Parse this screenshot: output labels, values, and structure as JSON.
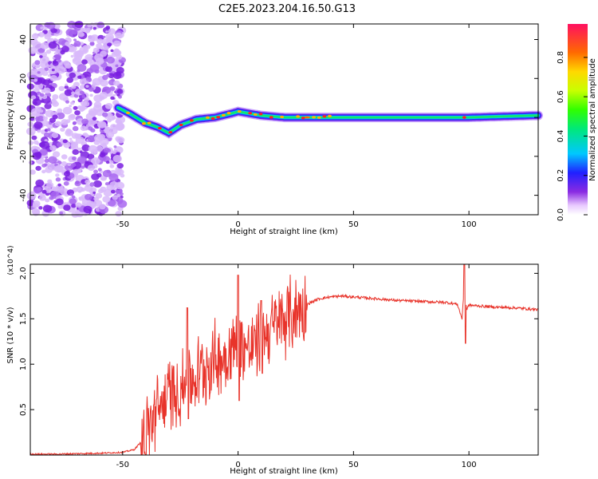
{
  "title": "C2E5.2023.204.16.50.G13",
  "chart_data": [
    {
      "type": "heatmap",
      "xlabel": "Height of straight line (km)",
      "ylabel": "Frequency (Hz)",
      "xlim": [
        -90,
        130
      ],
      "ylim": [
        -50,
        48
      ],
      "xticks": [
        -50,
        0,
        50,
        100
      ],
      "yticks": [
        -40,
        -20,
        0,
        20,
        40
      ],
      "colorbar": {
        "label": "Normalized spectral amplitude",
        "range": [
          0,
          0.97
        ],
        "ticks": [
          0.0,
          0.2,
          0.4,
          0.6,
          0.8
        ]
      },
      "ridge": [
        {
          "x": -52,
          "f": 5
        },
        {
          "x": -47,
          "f": 2
        },
        {
          "x": -40,
          "f": -3
        },
        {
          "x": -35,
          "f": -5
        },
        {
          "x": -30,
          "f": -8
        },
        {
          "x": -25,
          "f": -4
        },
        {
          "x": -18,
          "f": -1
        },
        {
          "x": -10,
          "f": 0
        },
        {
          "x": -3,
          "f": 2
        },
        {
          "x": 0,
          "f": 3
        },
        {
          "x": 10,
          "f": 1
        },
        {
          "x": 20,
          "f": 0
        },
        {
          "x": 40,
          "f": 0
        },
        {
          "x": 70,
          "f": 0
        },
        {
          "x": 100,
          "f": 0
        },
        {
          "x": 130,
          "f": 1
        }
      ],
      "noise_region_x": [
        -90,
        -50
      ]
    },
    {
      "type": "line",
      "xlabel": "Height of straight line (km)",
      "ylabel": "SNR (10 * v/v)",
      "multiplier": "(x10^4)",
      "xlim": [
        -90,
        130
      ],
      "ylim": [
        0,
        2.1
      ],
      "xticks": [
        -50,
        0,
        50,
        100
      ],
      "yticks": [
        0.5,
        1.0,
        1.5,
        2.0
      ],
      "color": "#e8332a",
      "series": [
        {
          "x": [
            -90,
            -80,
            -70,
            -60,
            -50,
            -45,
            -40,
            -36,
            -32,
            -28,
            -24,
            -20,
            -15,
            -10,
            -5,
            0,
            5,
            10,
            15,
            20,
            25,
            30,
            35,
            40,
            45,
            50,
            60,
            70,
            80,
            90,
            95,
            97,
            98,
            99,
            100,
            105,
            110,
            120,
            130
          ],
          "values": [
            0.01,
            0.01,
            0.015,
            0.02,
            0.03,
            0.06,
            0.2,
            0.45,
            0.6,
            0.7,
            0.75,
            0.8,
            0.95,
            1.05,
            1.1,
            1.25,
            1.15,
            1.3,
            1.4,
            1.5,
            1.58,
            1.66,
            1.72,
            1.74,
            1.75,
            1.74,
            1.72,
            1.7,
            1.69,
            1.68,
            1.66,
            1.5,
            1.85,
            1.6,
            1.65,
            1.64,
            1.63,
            1.62,
            1.6
          ]
        }
      ],
      "spikes": [
        {
          "x": -22,
          "peak": 1.62,
          "trough": 0.4
        },
        {
          "x": 0,
          "peak": 1.98,
          "trough": 0.6
        },
        {
          "x": 10,
          "peak": 1.7,
          "trough": 0.9
        },
        {
          "x": 98,
          "peak": 2.1,
          "trough": 1.23
        }
      ]
    }
  ]
}
